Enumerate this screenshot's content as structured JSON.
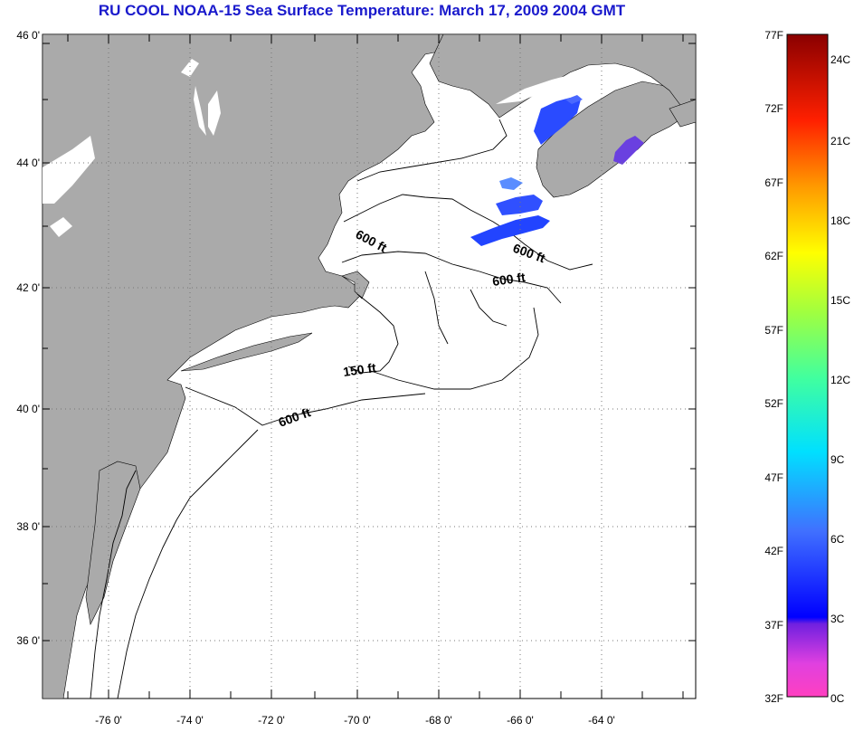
{
  "title": "RU COOL  NOAA-15  Sea Surface Temperature:  March 17, 2009 2004 GMT",
  "colors": {
    "land": "#aaaaaa",
    "water": "#ffffff",
    "title": "#1a1acc",
    "grid": "#777777"
  },
  "map": {
    "lat_labels": [
      "46 0'",
      "44 0'",
      "42 0'",
      "40 0'",
      "38 0'",
      "36 0'"
    ],
    "lon_labels": [
      "-76 0'",
      "-74 0'",
      "-72 0'",
      "-70 0'",
      "-68 0'",
      "-66 0'",
      "-64 0'"
    ],
    "contour_labels": [
      "600 ft",
      "600 ft",
      "600 ft",
      "150 ft",
      "600 ft"
    ]
  },
  "colorbar": {
    "fahrenheit": [
      "77F",
      "72F",
      "67F",
      "62F",
      "57F",
      "52F",
      "47F",
      "42F",
      "37F",
      "32F"
    ],
    "celsius": [
      "24C",
      "21C",
      "18C",
      "15C",
      "12C",
      "9C",
      "6C",
      "3C",
      "0C"
    ]
  }
}
